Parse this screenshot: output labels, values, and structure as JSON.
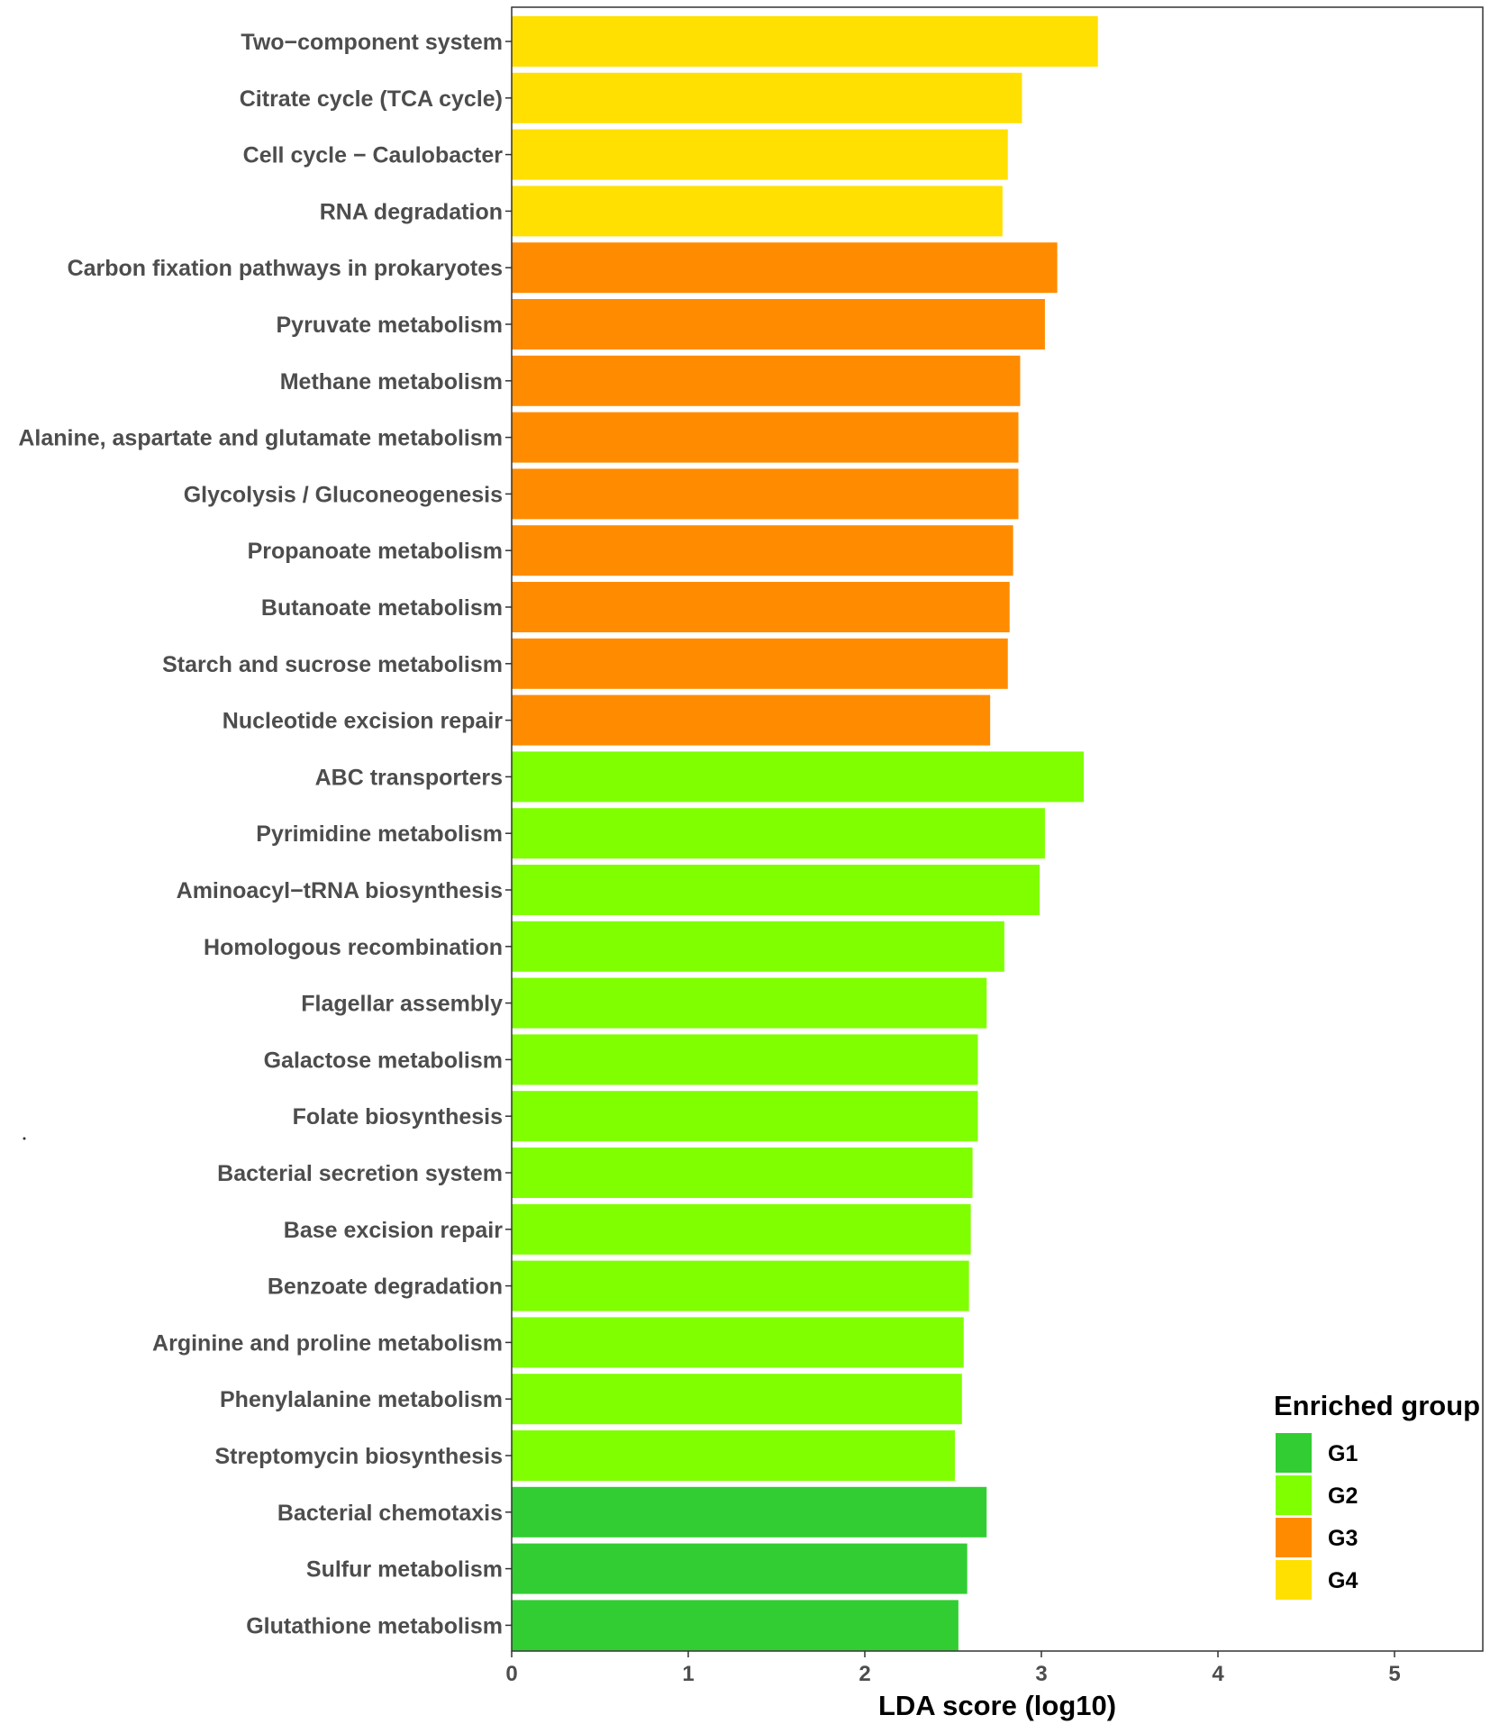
{
  "chart_data": {
    "type": "bar",
    "orientation": "horizontal",
    "xlabel": "LDA score (log10)",
    "ylabel": "",
    "xlim": [
      0,
      5.5
    ],
    "xticks": [
      0,
      1,
      2,
      3,
      4,
      5
    ],
    "grid": false,
    "legend": {
      "title": "Enriched group",
      "position": "bottom-right",
      "entries": [
        {
          "label": "G1",
          "color": "#32CD32"
        },
        {
          "label": "G2",
          "color": "#7FFF00"
        },
        {
          "label": "G3",
          "color": "#FF8C00"
        },
        {
          "label": "G4",
          "color": "#FFE000"
        }
      ]
    },
    "bars": [
      {
        "category": "Two−component system",
        "value": 3.32,
        "group": "G4"
      },
      {
        "category": "Citrate cycle (TCA cycle)",
        "value": 2.89,
        "group": "G4"
      },
      {
        "category": "Cell cycle − Caulobacter",
        "value": 2.81,
        "group": "G4"
      },
      {
        "category": "RNA degradation",
        "value": 2.78,
        "group": "G4"
      },
      {
        "category": "Carbon fixation pathways in prokaryotes",
        "value": 3.09,
        "group": "G3"
      },
      {
        "category": "Pyruvate metabolism",
        "value": 3.02,
        "group": "G3"
      },
      {
        "category": "Methane metabolism",
        "value": 2.88,
        "group": "G3"
      },
      {
        "category": "Alanine, aspartate and glutamate metabolism",
        "value": 2.87,
        "group": "G3"
      },
      {
        "category": "Glycolysis / Gluconeogenesis",
        "value": 2.87,
        "group": "G3"
      },
      {
        "category": "Propanoate metabolism",
        "value": 2.84,
        "group": "G3"
      },
      {
        "category": "Butanoate metabolism",
        "value": 2.82,
        "group": "G3"
      },
      {
        "category": "Starch and sucrose metabolism",
        "value": 2.81,
        "group": "G3"
      },
      {
        "category": "Nucleotide excision repair",
        "value": 2.71,
        "group": "G3"
      },
      {
        "category": "ABC transporters",
        "value": 3.24,
        "group": "G2"
      },
      {
        "category": "Pyrimidine metabolism",
        "value": 3.02,
        "group": "G2"
      },
      {
        "category": "Aminoacyl−tRNA biosynthesis",
        "value": 2.99,
        "group": "G2"
      },
      {
        "category": "Homologous recombination",
        "value": 2.79,
        "group": "G2"
      },
      {
        "category": "Flagellar assembly",
        "value": 2.69,
        "group": "G2"
      },
      {
        "category": "Galactose metabolism",
        "value": 2.64,
        "group": "G2"
      },
      {
        "category": "Folate biosynthesis",
        "value": 2.64,
        "group": "G2"
      },
      {
        "category": "Bacterial secretion system",
        "value": 2.61,
        "group": "G2"
      },
      {
        "category": "Base excision repair",
        "value": 2.6,
        "group": "G2"
      },
      {
        "category": "Benzoate degradation",
        "value": 2.59,
        "group": "G2"
      },
      {
        "category": "Arginine and proline metabolism",
        "value": 2.56,
        "group": "G2"
      },
      {
        "category": "Phenylalanine metabolism",
        "value": 2.55,
        "group": "G2"
      },
      {
        "category": "Streptomycin biosynthesis",
        "value": 2.51,
        "group": "G2"
      },
      {
        "category": "Bacterial chemotaxis",
        "value": 2.69,
        "group": "G1"
      },
      {
        "category": "Sulfur metabolism",
        "value": 2.58,
        "group": "G1"
      },
      {
        "category": "Glutathione metabolism",
        "value": 2.53,
        "group": "G1"
      }
    ]
  }
}
